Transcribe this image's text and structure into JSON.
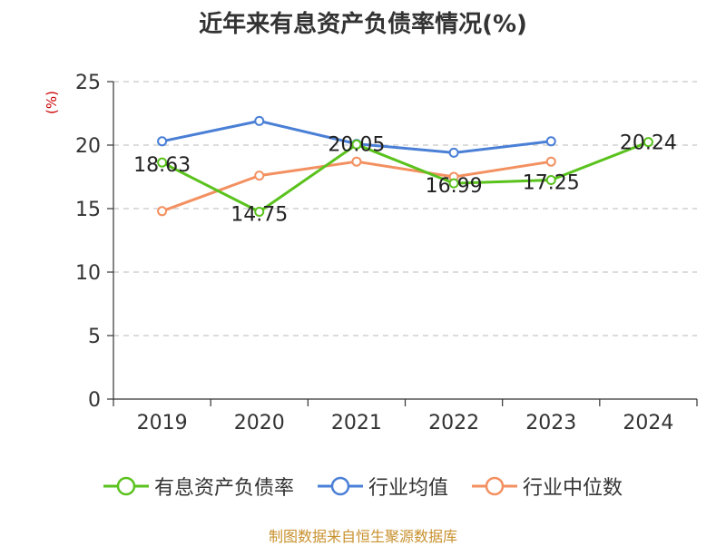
{
  "title": "近年来有息资产负债率情况(%)",
  "unit_label": "(%)",
  "source": "制图数据来自恒生聚源数据库",
  "colors": {
    "interest_debt": "#5ac21d",
    "industry_avg": "#4a7fd6",
    "industry_median": "#f39060",
    "grid": "#c8c8c8",
    "axis": "#333333",
    "unit": "#cc0000",
    "source": "#c8912e"
  },
  "chart_data": {
    "type": "line",
    "title": "近年来有息资产负债率情况(%)",
    "ylabel": "(%)",
    "xlabel": "",
    "categories": [
      "2019",
      "2020",
      "2021",
      "2022",
      "2023",
      "2024"
    ],
    "ylim": [
      0,
      25
    ],
    "yticks": [
      0,
      5,
      10,
      15,
      20,
      25
    ],
    "grid": "horizontal dashed",
    "legend_position": "bottom",
    "series": [
      {
        "key": "interest_debt",
        "name": "有息资产负债率",
        "color": "#5ac21d",
        "values": [
          18.63,
          14.75,
          20.05,
          16.99,
          17.25,
          20.24
        ],
        "labels": [
          "18.63",
          "14.75",
          "20.05",
          "16.99",
          "17.25",
          "20.24"
        ]
      },
      {
        "key": "industry_avg",
        "name": "行业均值",
        "color": "#4a7fd6",
        "values": [
          20.3,
          21.9,
          20.1,
          19.4,
          20.3,
          null
        ]
      },
      {
        "key": "industry_median",
        "name": "行业中位数",
        "color": "#f39060",
        "values": [
          14.8,
          17.6,
          18.7,
          17.5,
          18.7,
          null
        ]
      }
    ]
  }
}
